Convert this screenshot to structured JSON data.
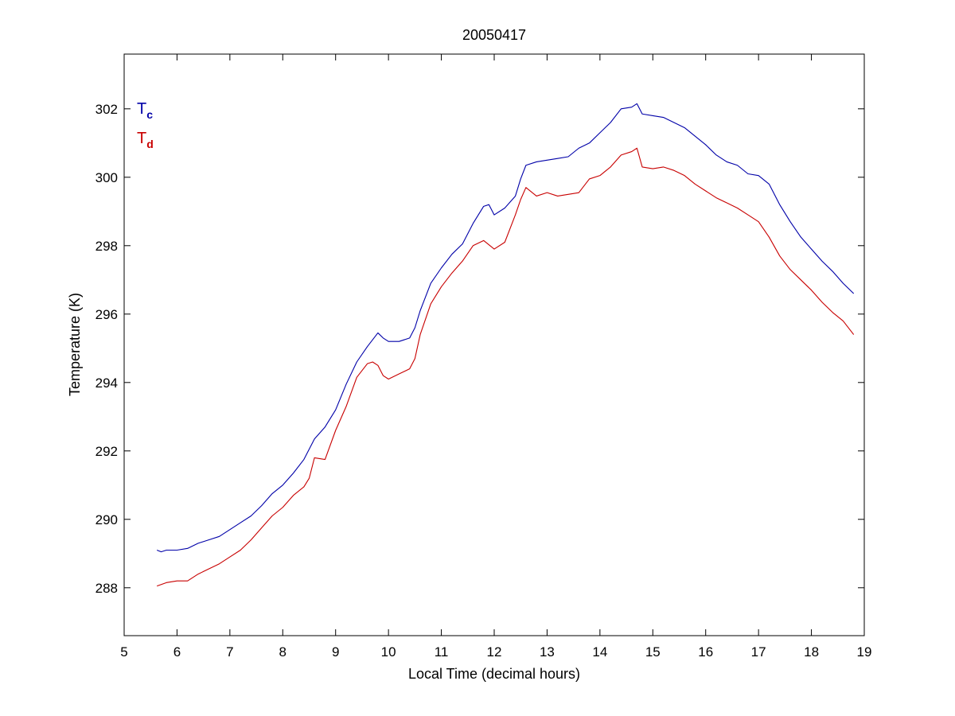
{
  "chart_data": {
    "type": "line",
    "title": "20050417",
    "xlabel": "Local Time (decimal hours)",
    "ylabel": "Temperature (K)",
    "xlim": [
      5,
      19
    ],
    "ylim": [
      286.6,
      303.6
    ],
    "xticks": [
      5,
      6,
      7,
      8,
      9,
      10,
      11,
      12,
      13,
      14,
      15,
      16,
      17,
      18,
      19
    ],
    "yticks": [
      288,
      290,
      292,
      294,
      296,
      298,
      300,
      302
    ],
    "grid": false,
    "legend_position": "top-left",
    "series": [
      {
        "name": "T",
        "subscript": "c",
        "color": "#0000a8",
        "x": [
          5.62,
          5.7,
          5.8,
          6.0,
          6.2,
          6.4,
          6.6,
          6.8,
          7.0,
          7.2,
          7.4,
          7.6,
          7.8,
          8.0,
          8.2,
          8.4,
          8.6,
          8.8,
          9.0,
          9.2,
          9.4,
          9.6,
          9.8,
          9.9,
          10.0,
          10.2,
          10.4,
          10.5,
          10.6,
          10.8,
          11.0,
          11.2,
          11.4,
          11.6,
          11.8,
          11.9,
          12.0,
          12.2,
          12.4,
          12.5,
          12.6,
          12.8,
          13.0,
          13.2,
          13.4,
          13.6,
          13.8,
          14.0,
          14.2,
          14.4,
          14.6,
          14.7,
          14.8,
          15.0,
          15.2,
          15.4,
          15.6,
          15.8,
          16.0,
          16.2,
          16.4,
          16.6,
          16.8,
          17.0,
          17.2,
          17.4,
          17.6,
          17.8,
          18.0,
          18.2,
          18.4,
          18.6,
          18.8
        ],
        "y": [
          289.1,
          289.05,
          289.1,
          289.1,
          289.15,
          289.3,
          289.4,
          289.5,
          289.7,
          289.9,
          290.1,
          290.4,
          290.75,
          291.0,
          291.35,
          291.75,
          292.35,
          292.7,
          293.2,
          293.95,
          294.6,
          295.05,
          295.45,
          295.3,
          295.2,
          295.2,
          295.3,
          295.6,
          296.1,
          296.9,
          297.35,
          297.75,
          298.05,
          298.65,
          299.15,
          299.2,
          298.9,
          299.1,
          299.45,
          299.95,
          300.35,
          300.45,
          300.5,
          300.55,
          300.6,
          300.85,
          301.0,
          301.3,
          301.6,
          302.0,
          302.05,
          302.15,
          301.85,
          301.8,
          301.75,
          301.6,
          301.45,
          301.2,
          300.95,
          300.65,
          300.45,
          300.35,
          300.1,
          300.05,
          299.8,
          299.2,
          298.7,
          298.25,
          297.9,
          297.55,
          297.25,
          296.9,
          296.6
        ]
      },
      {
        "name": "T",
        "subscript": "d",
        "color": "#c80000",
        "x": [
          5.62,
          5.8,
          6.0,
          6.2,
          6.4,
          6.6,
          6.8,
          7.0,
          7.2,
          7.4,
          7.6,
          7.8,
          8.0,
          8.2,
          8.4,
          8.5,
          8.6,
          8.8,
          9.0,
          9.2,
          9.4,
          9.6,
          9.7,
          9.8,
          9.9,
          10.0,
          10.2,
          10.4,
          10.5,
          10.6,
          10.8,
          11.0,
          11.2,
          11.4,
          11.6,
          11.8,
          12.0,
          12.2,
          12.4,
          12.5,
          12.6,
          12.8,
          13.0,
          13.2,
          13.4,
          13.6,
          13.8,
          14.0,
          14.2,
          14.4,
          14.6,
          14.7,
          14.8,
          15.0,
          15.2,
          15.4,
          15.6,
          15.8,
          16.0,
          16.2,
          16.4,
          16.6,
          16.8,
          17.0,
          17.2,
          17.4,
          17.6,
          17.8,
          18.0,
          18.2,
          18.4,
          18.6,
          18.8
        ],
        "y": [
          288.05,
          288.15,
          288.2,
          288.2,
          288.4,
          288.55,
          288.7,
          288.9,
          289.1,
          289.4,
          289.75,
          290.1,
          290.35,
          290.7,
          290.95,
          291.2,
          291.8,
          291.75,
          292.6,
          293.3,
          294.15,
          294.55,
          294.6,
          294.5,
          294.2,
          294.1,
          294.25,
          294.4,
          294.7,
          295.4,
          296.3,
          296.8,
          297.2,
          297.55,
          298.0,
          298.15,
          297.9,
          298.1,
          298.9,
          299.35,
          299.7,
          299.45,
          299.55,
          299.45,
          299.5,
          299.55,
          299.95,
          300.05,
          300.3,
          300.65,
          300.75,
          300.85,
          300.3,
          300.25,
          300.3,
          300.2,
          300.05,
          299.8,
          299.6,
          299.4,
          299.25,
          299.1,
          298.9,
          298.7,
          298.25,
          297.7,
          297.3,
          297.0,
          296.7,
          296.35,
          296.05,
          295.8,
          295.4
        ]
      }
    ]
  }
}
